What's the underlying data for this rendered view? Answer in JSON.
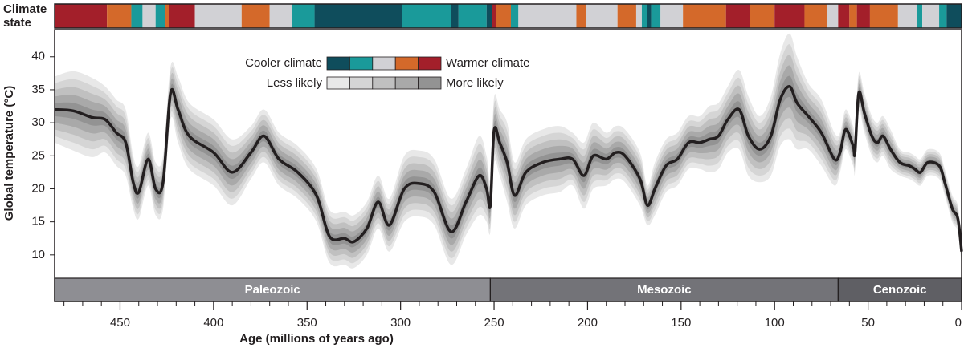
{
  "chart_data": {
    "type": "line",
    "climate_state_label": [
      "Climate",
      "state"
    ],
    "y_label": "Global temperature (°C)",
    "x_label": "Age (millions of years ago)",
    "xlim": [
      485,
      0
    ],
    "ylim": [
      6.7,
      44.1
    ],
    "xticks": [
      450,
      400,
      350,
      300,
      250,
      200,
      150,
      100,
      50,
      0
    ],
    "xminor_ticks": [
      480,
      470,
      460,
      440,
      430,
      420,
      410,
      390,
      380,
      370,
      360,
      340,
      330,
      320,
      310,
      290,
      280,
      270,
      260,
      240,
      230,
      220,
      210,
      190,
      180,
      170,
      160,
      140,
      130,
      120,
      110,
      90,
      80,
      70,
      60,
      40,
      30,
      20,
      10
    ],
    "yticks": [
      10,
      15,
      20,
      25,
      30,
      35,
      40
    ],
    "x": [
      485,
      475,
      465,
      458,
      452,
      447,
      443,
      440,
      435,
      431,
      427,
      423,
      419,
      413,
      400,
      390,
      380,
      373,
      365,
      355,
      345,
      338,
      330,
      325,
      318,
      312,
      306,
      298,
      290,
      282,
      273,
      265,
      258,
      254,
      252,
      250,
      247,
      243,
      239,
      233,
      224,
      215,
      208,
      202,
      197,
      190,
      185,
      180,
      172,
      168,
      164,
      158,
      152,
      146,
      140,
      135,
      130,
      125,
      119,
      114,
      108,
      102,
      97,
      92,
      88,
      82,
      75,
      68,
      65,
      62,
      58,
      57,
      55,
      52,
      48,
      45,
      42,
      38,
      33,
      28,
      25,
      22,
      18,
      12,
      9,
      5,
      2,
      0
    ],
    "series": [
      {
        "color": "#231f20",
        "values": [
          32,
          31.8,
          30.8,
          30.5,
          28.5,
          27,
          21,
          19.5,
          24.5,
          20,
          21,
          34.5,
          32,
          28,
          25.5,
          22.5,
          25.5,
          28,
          24.5,
          22.5,
          19,
          12.8,
          12.5,
          12,
          14,
          18,
          14.5,
          20,
          20.8,
          19.5,
          13.5,
          18,
          22,
          20,
          17.5,
          28.8,
          27,
          24,
          19,
          22.5,
          24,
          24.5,
          24.5,
          22,
          25,
          24.5,
          25.5,
          25,
          21.5,
          17.5,
          20,
          23.5,
          24.5,
          27,
          27,
          27.5,
          28,
          30.5,
          32,
          28,
          26,
          28,
          33.5,
          35.5,
          33,
          31,
          28.5,
          24.5,
          25.5,
          29,
          26.5,
          25.5,
          34.5,
          31.5,
          28,
          27,
          28,
          26,
          24,
          23.5,
          23,
          22.5,
          24,
          23.5,
          21,
          17,
          15.5,
          10.5
        ],
        "uncertainty": [
          5,
          6,
          6,
          5,
          5,
          5,
          4,
          4,
          4,
          4,
          4,
          4,
          5,
          5,
          5,
          5,
          4,
          4,
          4,
          4,
          4,
          4,
          4,
          4,
          4,
          4,
          4,
          5,
          5,
          5,
          5,
          5,
          6,
          5,
          4,
          5,
          5,
          6,
          5,
          5,
          5,
          5,
          4,
          5,
          5,
          4,
          4,
          4,
          4,
          3,
          4,
          4,
          4,
          4,
          4,
          5,
          5,
          5,
          6,
          6,
          5,
          6,
          7,
          8,
          7,
          5,
          5,
          4,
          3,
          3,
          3,
          3,
          3,
          3,
          3,
          3,
          3,
          3,
          2,
          2,
          2,
          2,
          2,
          2,
          2,
          2,
          2,
          2
        ]
      }
    ],
    "band_colors": [
      "#e8e8e8",
      "#d5d5d5",
      "#c0c0c0",
      "#a9a9a9",
      "#939393"
    ],
    "state_colors": [
      "#0f4d5c",
      "#1a9a9a",
      "#d1d1d5",
      "#d4692a",
      "#a31f2a"
    ],
    "climate_state": {
      "boundaries": [
        485,
        457,
        444,
        438,
        431,
        426,
        424,
        410,
        385,
        370,
        358,
        346,
        299,
        273,
        269,
        254,
        251,
        249,
        241,
        237,
        206,
        201,
        184,
        174,
        171,
        168,
        166,
        161,
        149,
        126,
        113,
        100,
        84,
        72,
        66,
        60,
        56,
        49,
        34,
        24,
        21,
        12,
        8,
        0
      ],
      "levels": [
        4,
        3,
        1,
        2,
        1,
        3,
        4,
        2,
        3,
        2,
        1,
        0,
        1,
        0,
        1,
        0,
        4,
        3,
        1,
        2,
        3,
        2,
        3,
        2,
        1,
        0,
        1,
        2,
        3,
        4,
        3,
        4,
        3,
        2,
        4,
        3,
        4,
        3,
        2,
        1,
        2,
        1,
        0
      ]
    },
    "legend": {
      "cooler": "Cooler climate",
      "warmer": "Warmer climate",
      "less": "Less likely",
      "more": "More likely"
    },
    "eras": {
      "names": [
        "Paleozoic",
        "Mesozoic",
        "Cenozoic"
      ],
      "boundaries": [
        485,
        252,
        66,
        0
      ],
      "colors": [
        "#8e8e93",
        "#737378",
        "#5f5f64"
      ]
    }
  }
}
